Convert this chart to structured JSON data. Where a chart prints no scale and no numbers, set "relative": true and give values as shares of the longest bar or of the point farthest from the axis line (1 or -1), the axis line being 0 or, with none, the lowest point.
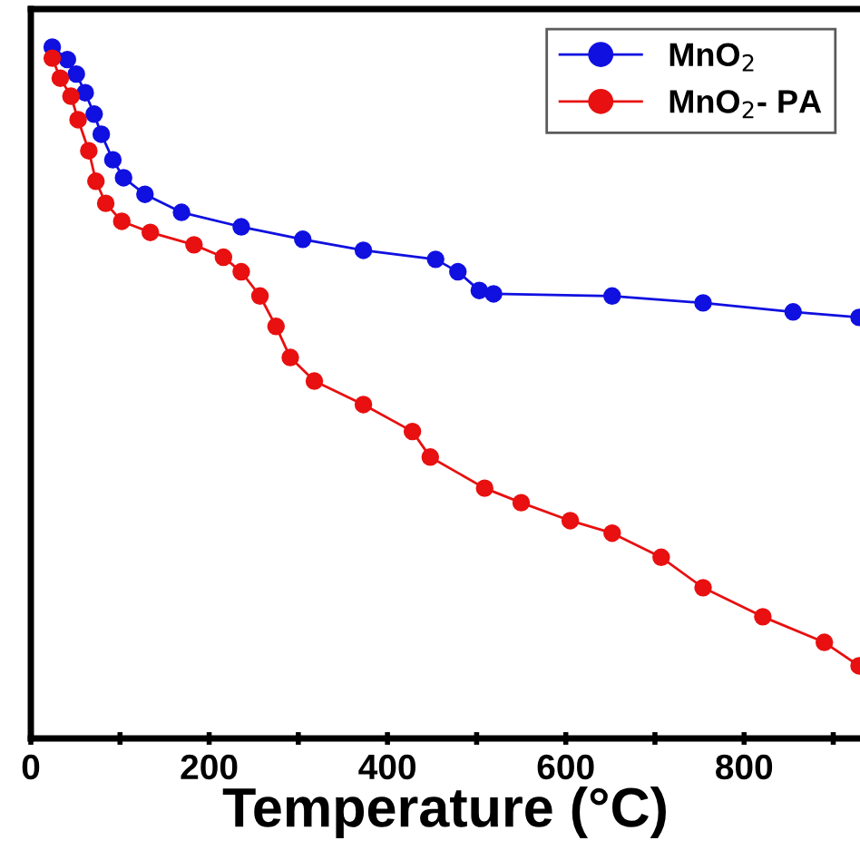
{
  "chart_data": {
    "type": "line",
    "relative": true,
    "xlabel": "Temperature (°C)",
    "xlim": [
      0,
      930
    ],
    "xticks": [
      0,
      {
        "value": 100,
        "label": null
      },
      200,
      {
        "value": 300,
        "label": null
      },
      400,
      {
        "value": 500,
        "label": null
      },
      600,
      {
        "value": 700,
        "label": null
      },
      800,
      {
        "value": 900,
        "label": null
      }
    ],
    "tick_labels": "x",
    "legend": "top right",
    "marker": "circle",
    "line_style": "solid",
    "grid": false,
    "series": [
      {
        "name": "MnO$_{2}$",
        "color": "#1010e0",
        "x": [
          24,
          41,
          51,
          61,
          71,
          79,
          92,
          104,
          128,
          169,
          236,
          305,
          373,
          454,
          479,
          503,
          519,
          652,
          754,
          855,
          929
        ],
        "values": [
          1.0,
          0.982,
          0.961,
          0.934,
          0.903,
          0.874,
          0.837,
          0.811,
          0.787,
          0.761,
          0.74,
          0.722,
          0.706,
          0.693,
          0.675,
          0.648,
          0.643,
          0.64,
          0.63,
          0.617,
          0.609
        ]
      },
      {
        "name": "MnO$_{2}$- PA",
        "color": "#e81010",
        "x": [
          24,
          33,
          45,
          53,
          65,
          73,
          84,
          102,
          134,
          183,
          216,
          236,
          257,
          275,
          291,
          318,
          373,
          428,
          448,
          509,
          550,
          605,
          652,
          707,
          754,
          821,
          890,
          929
        ],
        "values": [
          0.984,
          0.955,
          0.929,
          0.895,
          0.85,
          0.806,
          0.774,
          0.748,
          0.732,
          0.714,
          0.696,
          0.675,
          0.64,
          0.596,
          0.551,
          0.517,
          0.483,
          0.444,
          0.407,
          0.362,
          0.341,
          0.315,
          0.297,
          0.262,
          0.218,
          0.176,
          0.139,
          0.105
        ]
      }
    ]
  }
}
